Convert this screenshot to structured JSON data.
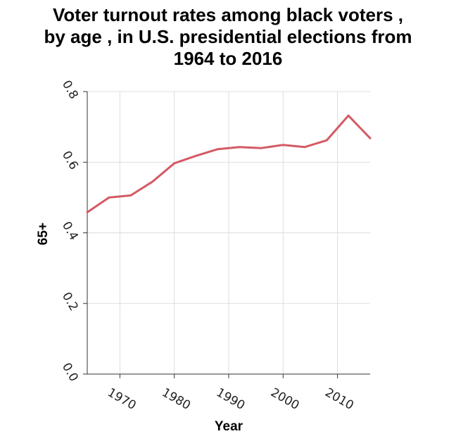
{
  "title_lines": [
    "Voter turnout rates among black voters ,",
    "by age , in U.S. presidential elections from",
    "1964 to 2016"
  ],
  "chart_data": {
    "type": "line",
    "title": "Voter turnout rates among black voters , by age , in U.S. presidential elections from 1964 to 2016",
    "xlabel": "Year",
    "ylabel": "65+",
    "xlim": [
      1964,
      2016
    ],
    "ylim": [
      0.0,
      0.8
    ],
    "x_ticks": [
      1970,
      1980,
      1990,
      2000,
      2010
    ],
    "x_tick_labels": [
      "1970",
      "1980",
      "1990",
      "2000",
      "2010"
    ],
    "y_ticks": [
      0.0,
      0.2,
      0.4,
      0.6,
      0.8
    ],
    "y_tick_labels": [
      "0.0",
      "0.2",
      "0.4",
      "0.6",
      "0.8"
    ],
    "grid": true,
    "series": [
      {
        "color": "#d45a64",
        "x": [
          1964,
          1968,
          1972,
          1976,
          1980,
          1984,
          1988,
          1992,
          1996,
          2000,
          2004,
          2008,
          2012,
          2016
        ],
        "y": [
          0.458,
          0.5,
          0.506,
          0.545,
          0.597,
          0.618,
          0.637,
          0.643,
          0.64,
          0.649,
          0.643,
          0.662,
          0.732,
          0.668
        ]
      }
    ]
  }
}
